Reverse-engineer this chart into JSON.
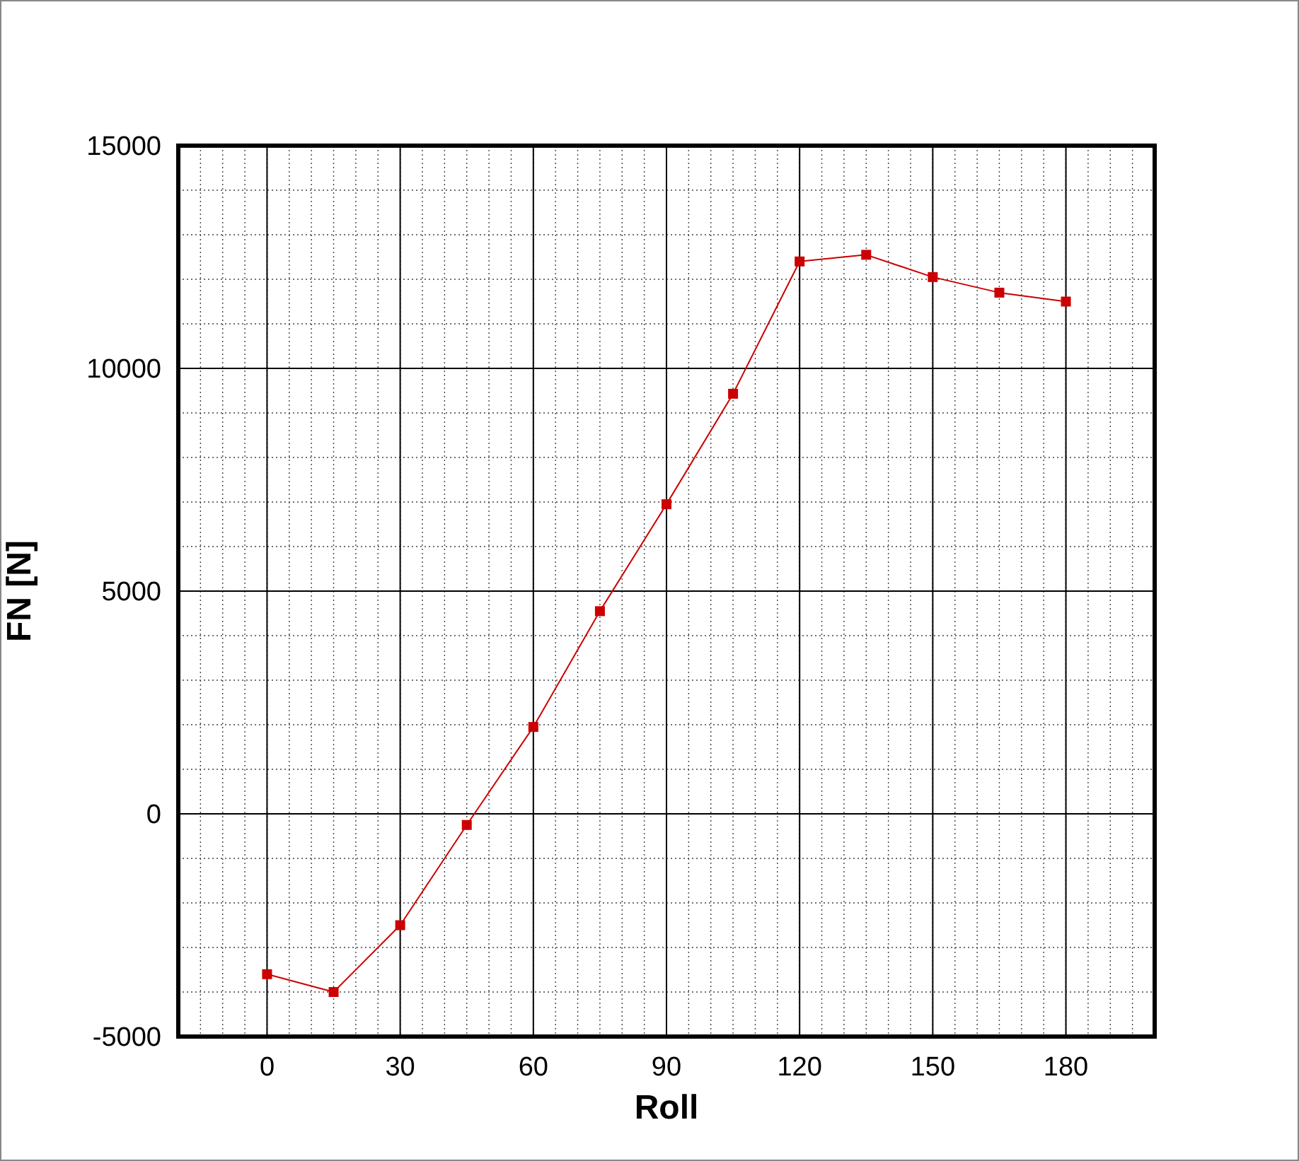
{
  "chart_data": {
    "type": "line",
    "xlabel": "Roll",
    "ylabel": "FN [N]",
    "x": [
      0,
      15,
      30,
      45,
      60,
      75,
      90,
      105,
      120,
      135,
      150,
      165,
      180
    ],
    "series": [
      {
        "color": "#cc0000",
        "values": [
          -3600,
          -4000,
          -2500,
          -250,
          1950,
          4550,
          6950,
          9430,
          12400,
          12550,
          12050,
          11700,
          11500
        ]
      }
    ],
    "xlim": [
      -20,
      200
    ],
    "xticks": [
      0,
      30,
      60,
      90,
      120,
      150,
      180
    ],
    "ylim": [
      -5000,
      15000
    ],
    "yticks": [
      -5000,
      0,
      5000,
      10000,
      15000
    ],
    "grid": true,
    "marker": "square",
    "line_style": "solid"
  }
}
